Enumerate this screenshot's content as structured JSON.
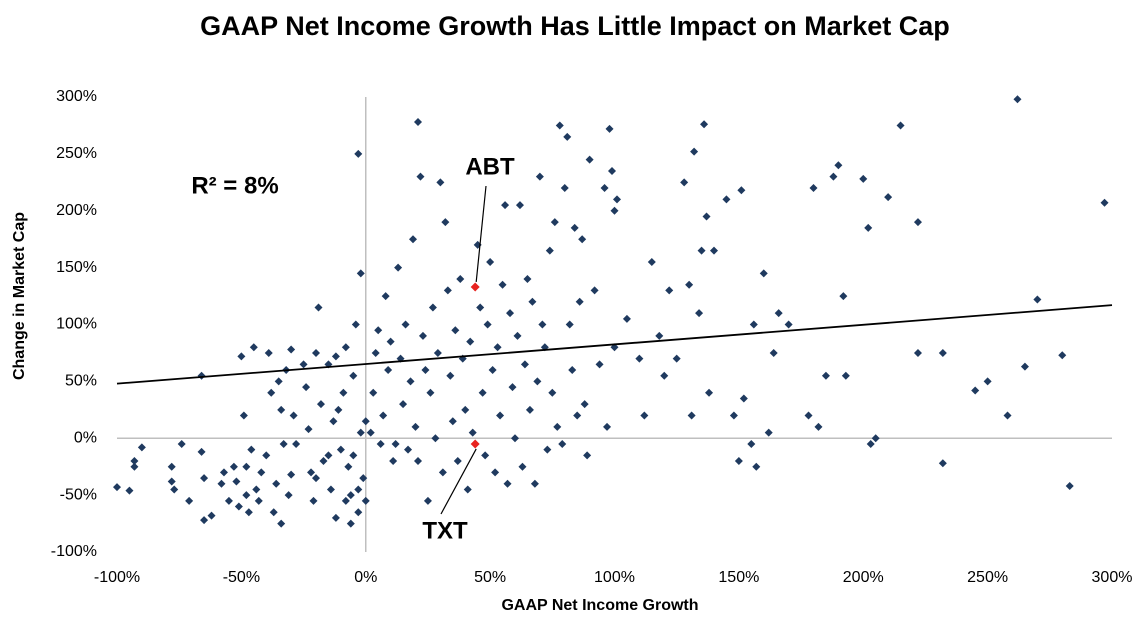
{
  "chart_data": {
    "type": "scatter",
    "title": "GAAP Net Income Growth Has Little Impact on Market Cap",
    "x_label": "GAAP Net Income Growth",
    "y_label": "Change in Market Cap",
    "xlim": [
      -100,
      300
    ],
    "ylim": [
      -100,
      300
    ],
    "xticks": [
      {
        "value": -100,
        "label": "-100%"
      },
      {
        "value": -50,
        "label": "-50%"
      },
      {
        "value": 0,
        "label": "0%"
      },
      {
        "value": 50,
        "label": "50%"
      },
      {
        "value": 100,
        "label": "100%"
      },
      {
        "value": 150,
        "label": "150%"
      },
      {
        "value": 200,
        "label": "200%"
      },
      {
        "value": 250,
        "label": "250%"
      },
      {
        "value": 300,
        "label": "300%"
      }
    ],
    "yticks": [
      {
        "value": -100,
        "label": "-100%"
      },
      {
        "value": -50,
        "label": "-50%"
      },
      {
        "value": 0,
        "label": "0%"
      },
      {
        "value": 50,
        "label": "50%"
      },
      {
        "value": 100,
        "label": "100%"
      },
      {
        "value": 150,
        "label": "150%"
      },
      {
        "value": 200,
        "label": "200%"
      },
      {
        "value": 250,
        "label": "250%"
      },
      {
        "value": 300,
        "label": "300%"
      }
    ],
    "color": "#1f3a5f",
    "x": [
      -100,
      -95,
      -93,
      -93,
      -90,
      -78,
      -78,
      -77,
      -74,
      -71,
      -66,
      -66,
      -65,
      -65,
      -62,
      -58,
      -57,
      -55,
      -53,
      -52,
      -51,
      -49,
      -48,
      -48,
      -47,
      -46,
      -45,
      -44,
      -43,
      -42,
      -50,
      -40,
      -39,
      -38,
      -37,
      -36,
      -35,
      -34,
      -34,
      -33,
      -32,
      -31,
      -30,
      -30,
      -29,
      -28,
      -25,
      -24,
      -23,
      -22,
      -21,
      -20,
      -19,
      -18,
      -17,
      -15,
      -14,
      -13,
      -12,
      -11,
      -10,
      -9,
      -8,
      -7,
      -6,
      -5,
      -4,
      -3,
      -3,
      -2,
      -2,
      -1,
      0,
      0,
      -3,
      -5,
      -8,
      -12,
      -6,
      -15,
      -20,
      2,
      3,
      4,
      5,
      6,
      7,
      8,
      9,
      10,
      11,
      12,
      13,
      14,
      15,
      16,
      17,
      18,
      19,
      20,
      21,
      21,
      22,
      23,
      24,
      25,
      26,
      27,
      28,
      29,
      30,
      31,
      32,
      33,
      34,
      35,
      36,
      37,
      38,
      39,
      40,
      41,
      42,
      43,
      45,
      46,
      47,
      48,
      49,
      50,
      51,
      52,
      53,
      54,
      55,
      56,
      57,
      58,
      59,
      60,
      61,
      62,
      63,
      64,
      65,
      66,
      67,
      68,
      69,
      70,
      71,
      72,
      73,
      74,
      75,
      76,
      77,
      78,
      79,
      80,
      81,
      82,
      83,
      84,
      85,
      86,
      87,
      88,
      89,
      90,
      92,
      94,
      96,
      97,
      98,
      99,
      100,
      101,
      100,
      105,
      110,
      112,
      115,
      118,
      120,
      122,
      125,
      128,
      130,
      131,
      132,
      134,
      135,
      136,
      137,
      138,
      140,
      145,
      148,
      150,
      151,
      152,
      155,
      156,
      157,
      160,
      162,
      164,
      166,
      170,
      178,
      180,
      182,
      185,
      188,
      190,
      192,
      193,
      200,
      202,
      203,
      205,
      210,
      215,
      222,
      222,
      232,
      232,
      245,
      250,
      258,
      262,
      265,
      270,
      280,
      283,
      297
    ],
    "y": [
      -43,
      -46,
      -20,
      -25,
      -8,
      -25,
      -38,
      -45,
      -5,
      -55,
      55,
      -12,
      -35,
      -72,
      -68,
      -40,
      -30,
      -55,
      -25,
      -38,
      -60,
      20,
      -25,
      -50,
      -65,
      -10,
      80,
      -45,
      -55,
      -30,
      72,
      -15,
      75,
      40,
      -65,
      -40,
      50,
      25,
      -75,
      -5,
      60,
      -50,
      78,
      -32,
      20,
      -5,
      65,
      45,
      8,
      -30,
      -55,
      75,
      115,
      30,
      -20,
      65,
      -45,
      15,
      72,
      25,
      -10,
      40,
      80,
      -25,
      -50,
      55,
      100,
      250,
      -65,
      145,
      5,
      -35,
      15,
      -55,
      -45,
      -15,
      -55,
      -70,
      -75,
      -15,
      -35,
      5,
      40,
      75,
      95,
      -5,
      20,
      125,
      60,
      85,
      -20,
      -5,
      150,
      70,
      30,
      100,
      -10,
      50,
      175,
      10,
      278,
      -20,
      230,
      90,
      60,
      -55,
      40,
      115,
      0,
      75,
      225,
      -30,
      190,
      130,
      55,
      15,
      95,
      -20,
      140,
      70,
      25,
      -45,
      85,
      5,
      170,
      115,
      40,
      -15,
      100,
      155,
      60,
      -30,
      80,
      20,
      135,
      205,
      -40,
      110,
      45,
      0,
      90,
      205,
      -25,
      65,
      140,
      25,
      120,
      -40,
      50,
      230,
      100,
      80,
      -10,
      165,
      40,
      190,
      10,
      275,
      -5,
      220,
      265,
      100,
      60,
      185,
      20,
      120,
      175,
      30,
      -15,
      245,
      130,
      65,
      220,
      10,
      272,
      235,
      200,
      210,
      80,
      105,
      70,
      20,
      155,
      90,
      55,
      130,
      70,
      225,
      135,
      20,
      252,
      110,
      165,
      276,
      195,
      40,
      165,
      210,
      20,
      -20,
      218,
      35,
      -5,
      100,
      -25,
      145,
      5,
      75,
      110,
      100,
      20,
      220,
      10,
      55,
      230,
      240,
      125,
      55,
      228,
      185,
      -5,
      0,
      212,
      275,
      75,
      190,
      75,
      -22,
      42,
      50,
      20,
      298,
      63,
      122,
      73,
      -42,
      207
    ],
    "trendline": {
      "x": [
        -100,
        300
      ],
      "y": [
        48,
        117
      ]
    },
    "annotations": [
      {
        "label": "R² = 8%"
      },
      {
        "label": "ABT",
        "x": 44,
        "y": 133,
        "color": "#e8231f"
      },
      {
        "label": "TXT",
        "x": 44,
        "y": -5,
        "color": "#e8231f"
      }
    ]
  }
}
